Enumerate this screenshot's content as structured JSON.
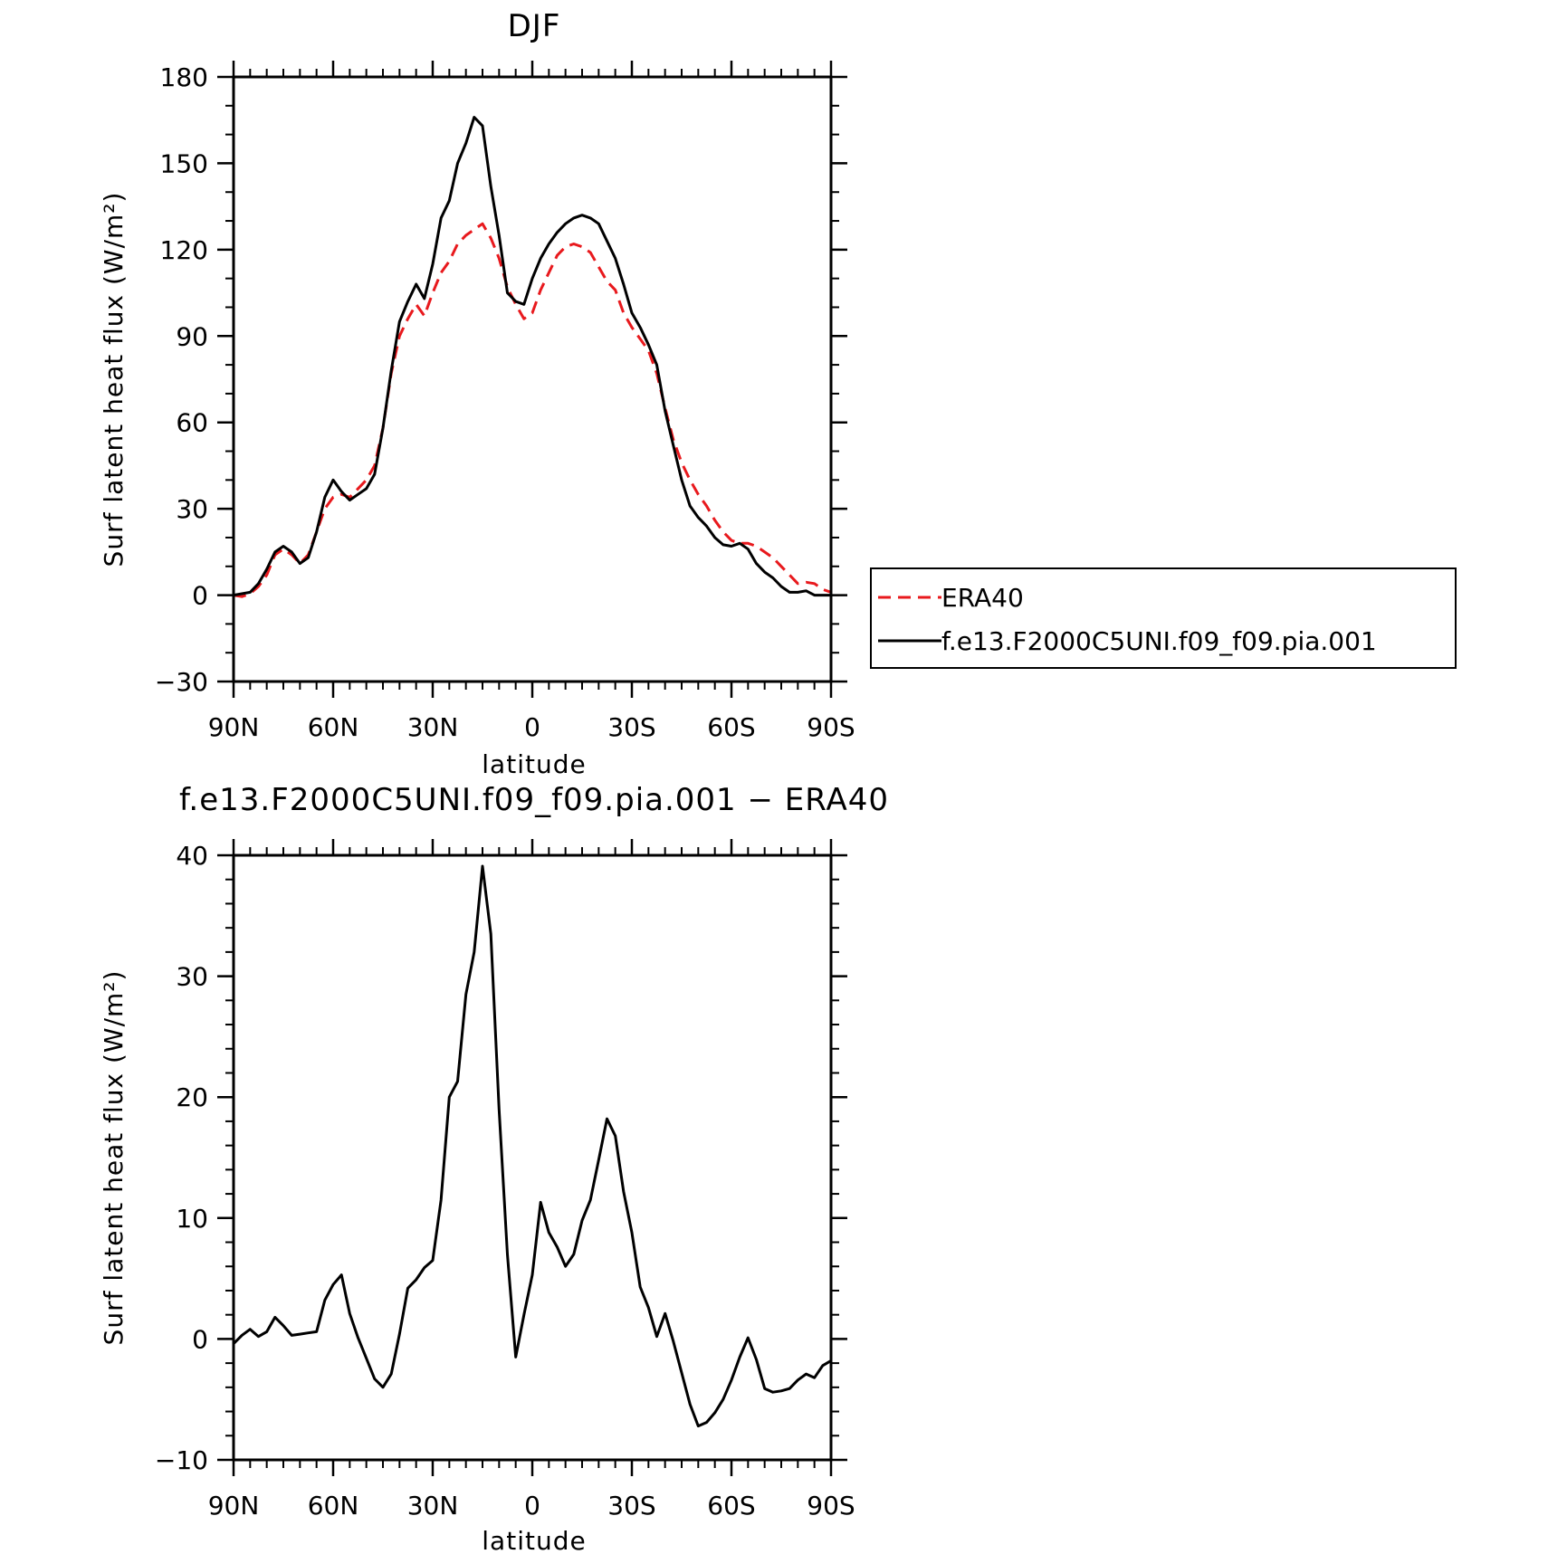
{
  "chart_data": [
    {
      "type": "line",
      "title": "DJF",
      "xlabel": "latitude",
      "ylabel": "Surf latent heat flux (W/m²)",
      "ylim": [
        -30,
        180
      ],
      "xlim": [
        90,
        -90
      ],
      "yticks": [
        {
          "value": 180,
          "label": "180"
        },
        {
          "value": 150,
          "label": "150"
        },
        {
          "value": 120,
          "label": "120"
        },
        {
          "value": 90,
          "label": "90"
        },
        {
          "value": 60,
          "label": "60"
        },
        {
          "value": 30,
          "label": "30"
        },
        {
          "value": 0,
          "label": "0"
        },
        {
          "value": -30,
          "label": "−30"
        }
      ],
      "xticks": [
        {
          "value": 90,
          "label": "90N"
        },
        {
          "value": 60,
          "label": "60N"
        },
        {
          "value": 30,
          "label": "30N"
        },
        {
          "value": 0,
          "label": "0"
        },
        {
          "value": -30,
          "label": "30S"
        },
        {
          "value": -60,
          "label": "60S"
        },
        {
          "value": -90,
          "label": "90S"
        }
      ],
      "legend_position": "right",
      "series": [
        {
          "name": "ERA40",
          "color": "#e8191d",
          "dash": true,
          "x": [
            90,
            87.5,
            85,
            82.5,
            80,
            77.5,
            75,
            72.5,
            70,
            67.5,
            65,
            62.5,
            60,
            57.5,
            55,
            52.5,
            50,
            47.5,
            45,
            42.5,
            40,
            37.5,
            35,
            32.5,
            30,
            27.5,
            25,
            22.5,
            20,
            17.5,
            15,
            12.5,
            10,
            7.5,
            5,
            2.5,
            0,
            -2.5,
            -5,
            -7.5,
            -10,
            -12.5,
            -15,
            -17.5,
            -20,
            -22.5,
            -25,
            -27.5,
            -30,
            -32.5,
            -35,
            -37.5,
            -40,
            -42.5,
            -45,
            -47.5,
            -50,
            -52.5,
            -55,
            -57.5,
            -60,
            -62.5,
            -65,
            -67.5,
            -70,
            -72.5,
            -75,
            -77.5,
            -80,
            -82.5,
            -85,
            -87.5,
            -90
          ],
          "y": [
            0,
            -0.5,
            0.5,
            3,
            7,
            14,
            16,
            14,
            11,
            14,
            22,
            30,
            34,
            35,
            34,
            37,
            40,
            45,
            58,
            77,
            90,
            96,
            101,
            97,
            105,
            112,
            116,
            122,
            125,
            127,
            129,
            124,
            117,
            107,
            101,
            96,
            98,
            106,
            112,
            118,
            121,
            122,
            121,
            119,
            114,
            109,
            106,
            98,
            93,
            89,
            85,
            77,
            65,
            54,
            46,
            40,
            35,
            31,
            26,
            22,
            19,
            18,
            18,
            17,
            15,
            13,
            10,
            7,
            4,
            4.5,
            4,
            2,
            1
          ],
          "legend_label": "ERA40"
        },
        {
          "name": "f.e13.F2000C5UNI.f09_f09.pia.001",
          "color": "#000000",
          "dash": false,
          "x": [
            90,
            87.5,
            85,
            82.5,
            80,
            77.5,
            75,
            72.5,
            70,
            67.5,
            65,
            62.5,
            60,
            57.5,
            55,
            52.5,
            50,
            47.5,
            45,
            42.5,
            40,
            37.5,
            35,
            32.5,
            30,
            27.5,
            25,
            22.5,
            20,
            17.5,
            15,
            12.5,
            10,
            7.5,
            5,
            2.5,
            0,
            -2.5,
            -5,
            -7.5,
            -10,
            -12.5,
            -15,
            -17.5,
            -20,
            -22.5,
            -25,
            -27.5,
            -30,
            -32.5,
            -35,
            -37.5,
            -40,
            -42.5,
            -45,
            -47.5,
            -50,
            -52.5,
            -55,
            -57.5,
            -60,
            -62.5,
            -65,
            -67.5,
            -70,
            -72.5,
            -75,
            -77.5,
            -80,
            -82.5,
            -85,
            -87.5,
            -90
          ],
          "y": [
            0,
            0.5,
            1,
            4,
            9,
            15,
            17,
            15,
            11,
            13,
            22,
            34,
            40,
            36,
            33,
            35,
            37,
            42,
            58,
            78,
            95,
            102,
            108,
            103,
            115,
            131,
            137,
            150,
            157,
            166,
            163,
            142,
            125,
            105,
            102,
            101,
            110,
            117,
            122,
            126,
            129,
            131,
            132,
            131,
            129,
            123,
            117,
            108,
            98,
            93,
            87,
            80,
            64,
            52,
            40,
            31,
            27,
            24,
            20,
            17.5,
            17,
            18,
            16,
            11,
            8,
            6,
            3,
            1,
            1,
            1.5,
            0,
            0,
            0
          ],
          "legend_label": "f.e13.F2000C5UNI.f09_f09.pia.001"
        }
      ]
    },
    {
      "type": "line",
      "title": "f.e13.F2000C5UNI.f09_f09.pia.001 − ERA40",
      "xlabel": "latitude",
      "ylabel": "Surf latent heat flux (W/m²)",
      "ylim": [
        -10,
        40
      ],
      "xlim": [
        90,
        -90
      ],
      "yticks": [
        {
          "value": 40,
          "label": "40"
        },
        {
          "value": 30,
          "label": "30"
        },
        {
          "value": 20,
          "label": "20"
        },
        {
          "value": 10,
          "label": "10"
        },
        {
          "value": 0,
          "label": "0"
        },
        {
          "value": -10,
          "label": "−10"
        }
      ],
      "xticks": [
        {
          "value": 90,
          "label": "90N"
        },
        {
          "value": 60,
          "label": "60N"
        },
        {
          "value": 30,
          "label": "30N"
        },
        {
          "value": 0,
          "label": "0"
        },
        {
          "value": -30,
          "label": "30S"
        },
        {
          "value": -60,
          "label": "60S"
        },
        {
          "value": -90,
          "label": "90S"
        }
      ],
      "series": [
        {
          "color": "#000000",
          "dash": false,
          "x": [
            90,
            87.5,
            85,
            82.5,
            80,
            77.5,
            75,
            72.5,
            70,
            67.5,
            65,
            62.5,
            60,
            57.5,
            55,
            52.5,
            50,
            47.5,
            45,
            42.5,
            40,
            37.5,
            35,
            32.5,
            30,
            27.5,
            25,
            22.5,
            20,
            17.5,
            15,
            12.5,
            10,
            7.5,
            5,
            2.5,
            0,
            -2.5,
            -5,
            -7.5,
            -10,
            -12.5,
            -15,
            -17.5,
            -20,
            -22.5,
            -25,
            -27.5,
            -30,
            -32.5,
            -35,
            -37.5,
            -40,
            -42.5,
            -45,
            -47.5,
            -50,
            -52.5,
            -55,
            -57.5,
            -60,
            -62.5,
            -65,
            -67.5,
            -70,
            -72.5,
            -75,
            -77.5,
            -80,
            -82.5,
            -85,
            -87.5,
            -90
          ],
          "y": [
            -0.4,
            0.3,
            0.8,
            0.2,
            0.6,
            1.8,
            1.1,
            0.3,
            0.4,
            0.5,
            0.6,
            3.2,
            4.5,
            5.3,
            2.1,
            0.1,
            -1.6,
            -3.3,
            -4.0,
            -2.9,
            0.4,
            4.2,
            4.9,
            5.9,
            6.5,
            11.5,
            20.0,
            21.3,
            28.5,
            32.0,
            39.1,
            33.5,
            19.0,
            7.0,
            -1.5,
            2.0,
            5.3,
            11.3,
            8.8,
            7.6,
            6.0,
            7.0,
            9.8,
            11.5,
            14.8,
            18.2,
            16.8,
            12.2,
            8.8,
            4.3,
            2.6,
            0.2,
            2.1,
            -0.2,
            -2.8,
            -5.4,
            -7.2,
            -6.9,
            -6.1,
            -5.0,
            -3.4,
            -1.5,
            0.1,
            -1.7,
            -4.1,
            -4.4,
            -4.3,
            -4.1,
            -3.4,
            -2.9,
            -3.2,
            -2.2,
            -1.8
          ]
        }
      ]
    }
  ]
}
